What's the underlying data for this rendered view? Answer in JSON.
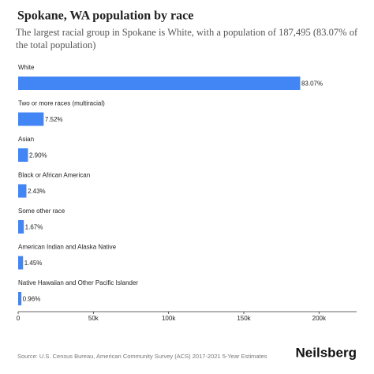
{
  "chart_data": {
    "type": "barh",
    "title": "Spokane, WA population by race",
    "subtitle": "The largest racial group in Spokane is White, with a population of 187,495 (83.07% of the total population)",
    "categories": [
      "White",
      "Two or more races (multiracial)",
      "Asian",
      "Black or African American",
      "Some other race",
      "American Indian and Alaska Native",
      "Native Hawaiian and Other Pacific Islander"
    ],
    "values": [
      187495,
      16973,
      6546,
      5485,
      3769,
      3273,
      2167
    ],
    "share_labels": [
      "83.07%",
      "7.52%",
      "2.90%",
      "2.43%",
      "1.67%",
      "1.45%",
      "0.96%"
    ],
    "color": "#4285f4",
    "xlim": [
      0,
      225000
    ],
    "xticks": [
      0,
      {
        "value": 50000,
        "label": "50k"
      },
      {
        "value": 100000,
        "label": "100k"
      },
      {
        "value": 150000,
        "label": "150k"
      },
      {
        "value": 200000,
        "label": "200k"
      }
    ],
    "source": "Source: U.S. Census Bureau, American Community Survey (ACS) 2017-2021 5-Year Estimates",
    "brand": "Neilsberg"
  }
}
